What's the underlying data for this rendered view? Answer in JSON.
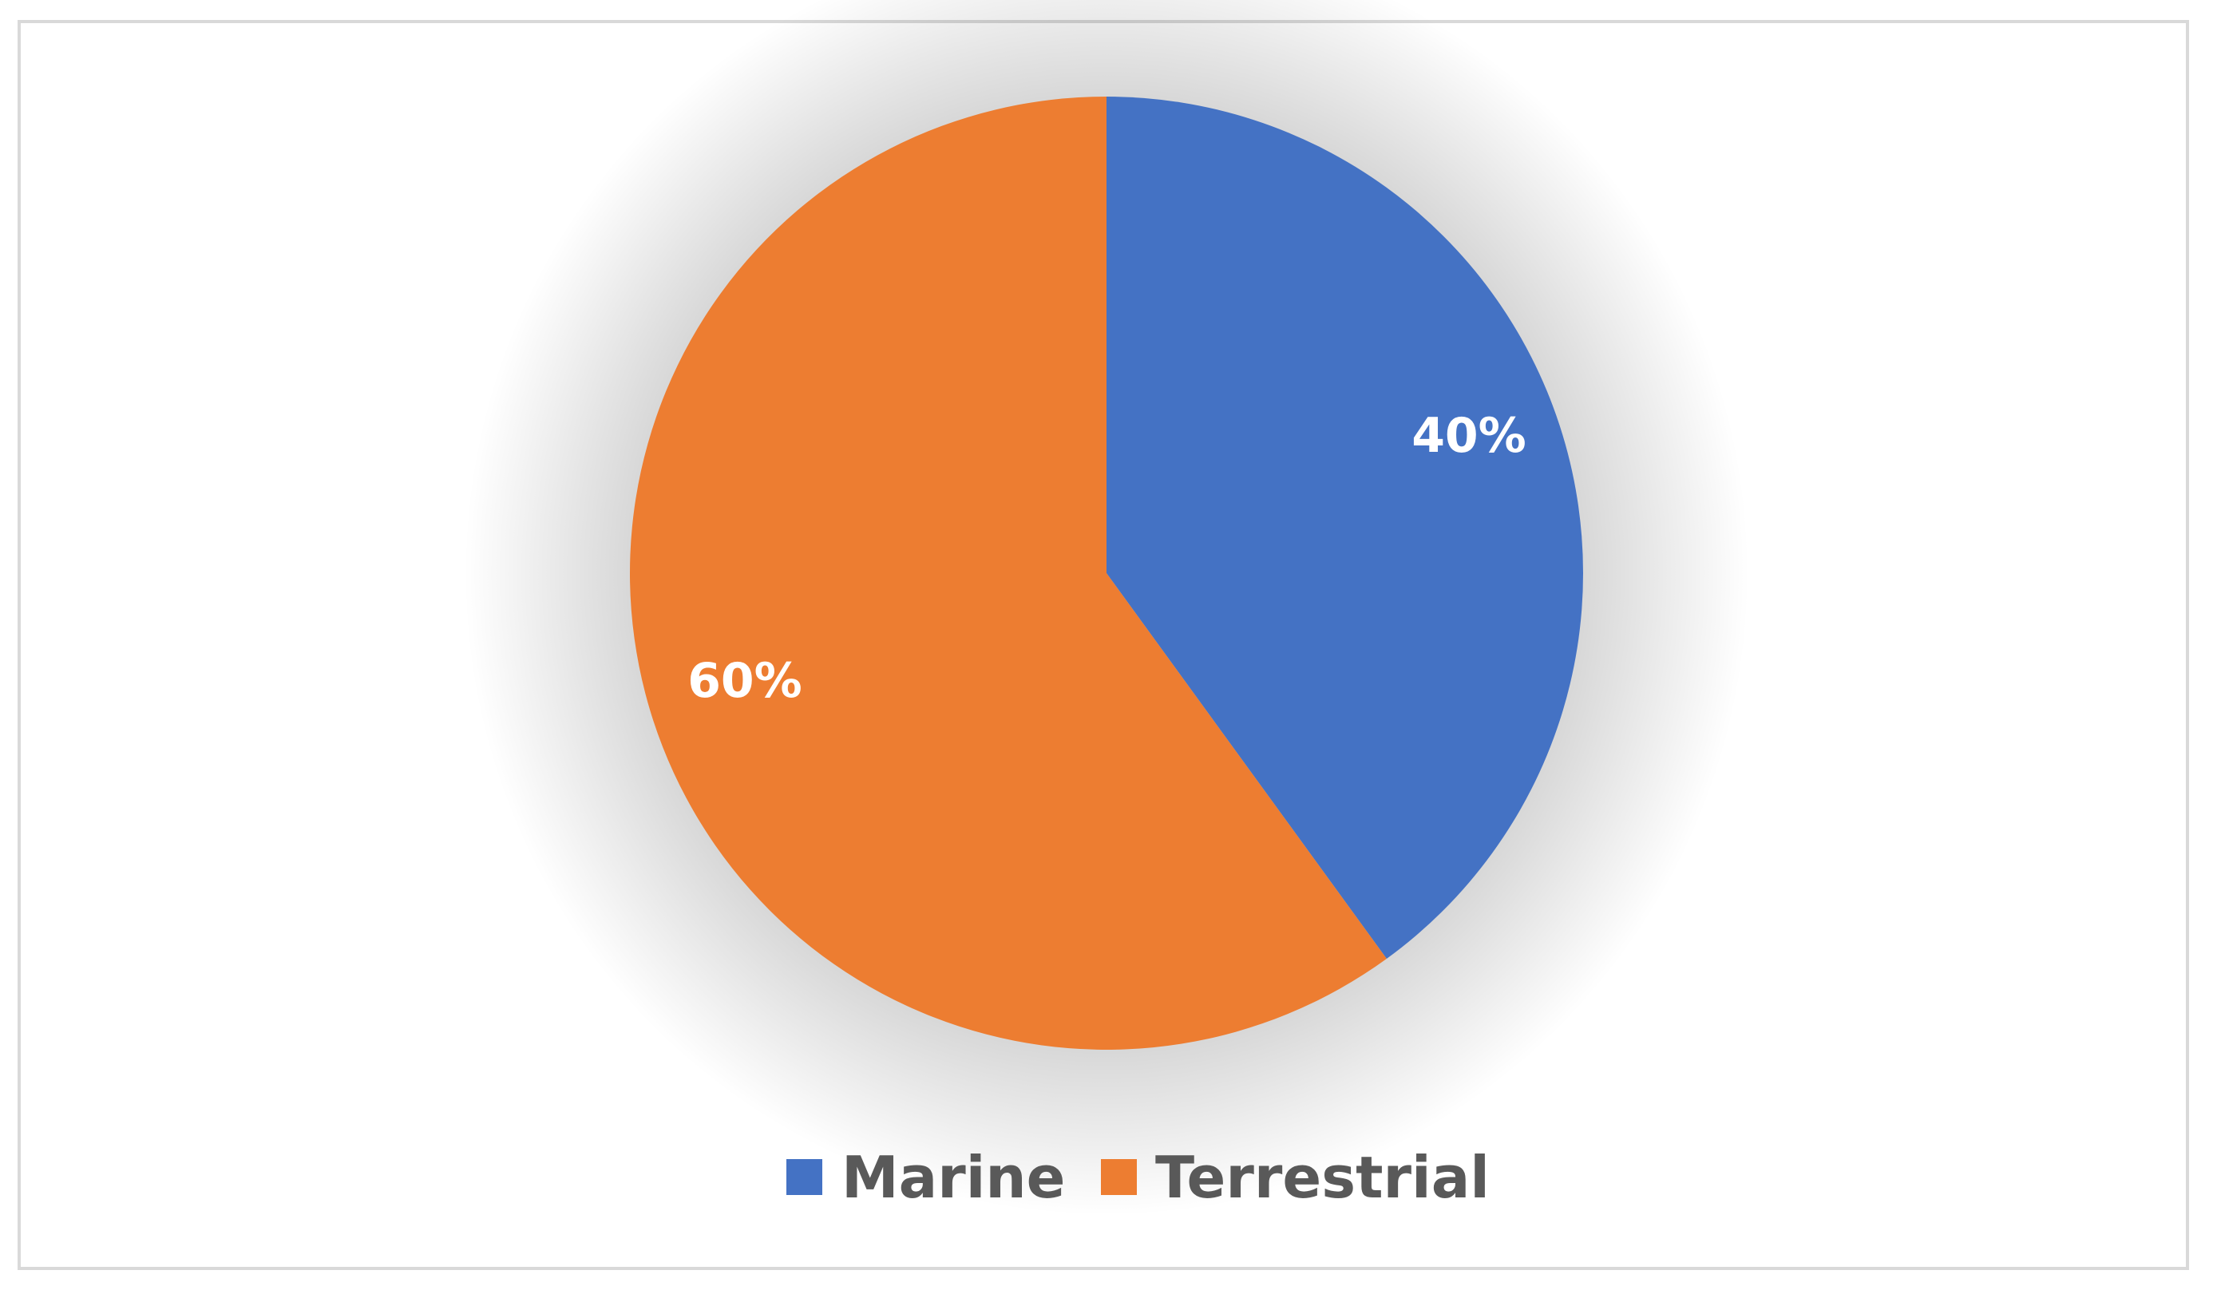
{
  "chart_data": {
    "type": "pie",
    "title": "",
    "slices": [
      {
        "label": "Marine",
        "value": 40,
        "display": "40%",
        "color": "#4472C4"
      },
      {
        "label": "Terrestrial",
        "value": 60,
        "display": "60%",
        "color": "#ED7D31"
      }
    ],
    "legend_placement": "bottom",
    "start_angle": "top, clockwise"
  }
}
